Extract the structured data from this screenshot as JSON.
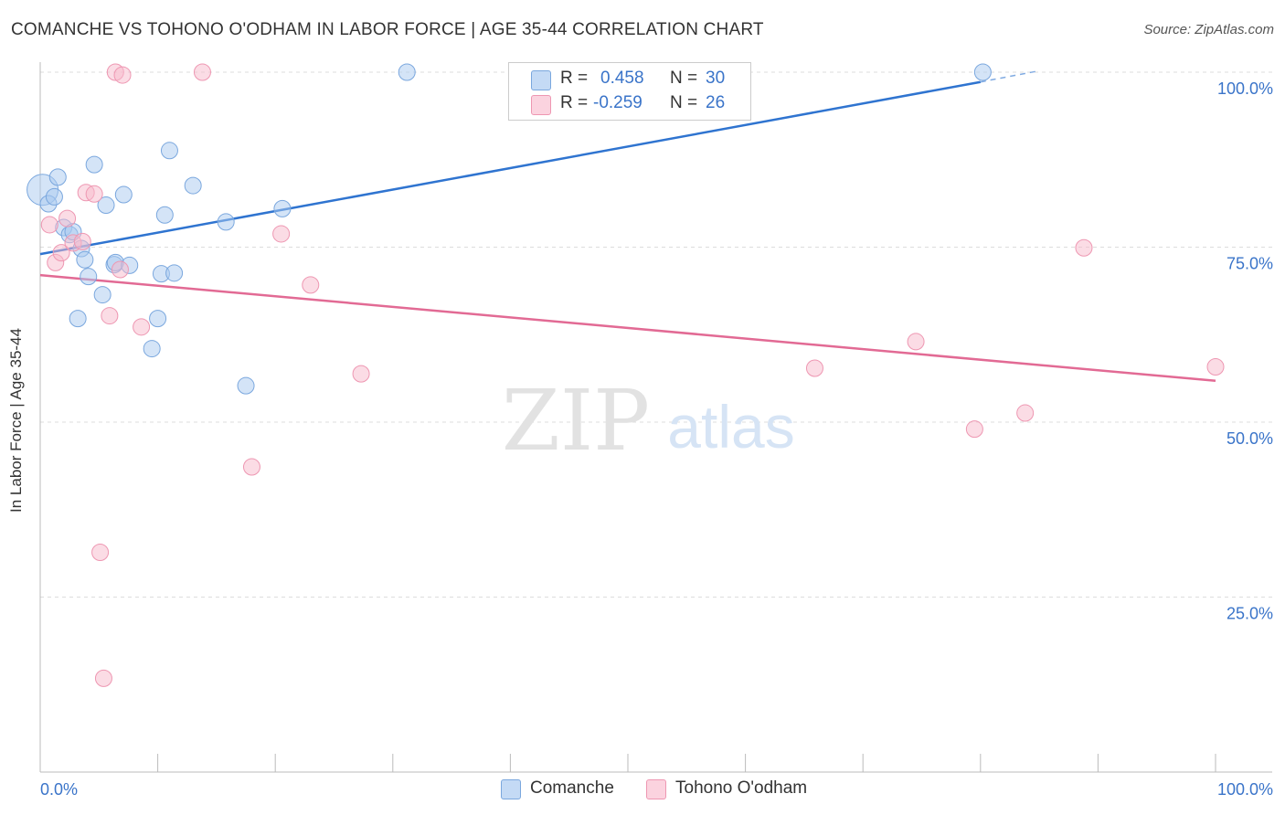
{
  "header": {
    "title": "COMANCHE VS TOHONO O'ODHAM IN LABOR FORCE | AGE 35-44 CORRELATION CHART",
    "source": "Source: ZipAtlas.com"
  },
  "watermark": {
    "zip": "ZIP",
    "atlas": "atlas"
  },
  "legend": {
    "rows": [
      {
        "r_label": "R =",
        "r_value": "0.458",
        "n_label": "N =",
        "n_value": "30",
        "color": "#a9c9f0"
      },
      {
        "r_label": "R =",
        "r_value": "-0.259",
        "n_label": "N =",
        "n_value": "26",
        "color": "#f7b9cc"
      }
    ],
    "bottom": [
      {
        "label": "Comanche",
        "color": "#a9c9f0"
      },
      {
        "label": "Tohono O'odham",
        "color": "#f7b9cc"
      }
    ]
  },
  "chart_data": {
    "type": "scatter",
    "title": "COMANCHE VS TOHONO O'ODHAM IN LABOR FORCE | AGE 35-44 CORRELATION CHART",
    "xlabel": "",
    "ylabel": "In Labor Force | Age 35-44",
    "xlim": [
      0,
      100
    ],
    "ylim": [
      0,
      100
    ],
    "x_tick_labels": {
      "left": "0.0%",
      "right": "100.0%"
    },
    "y_ticks": [
      {
        "value": 100,
        "label": "100.0%"
      },
      {
        "value": 75,
        "label": "75.0%"
      },
      {
        "value": 50,
        "label": "50.0%"
      },
      {
        "value": 25,
        "label": "25.0%"
      }
    ],
    "grid": true,
    "series": [
      {
        "name": "Comanche",
        "color": "#a9c9f0",
        "stroke": "#7aa7de",
        "line_color": "#2f74d0",
        "trend": {
          "x0": 0,
          "y0": 74.0,
          "x1": 80,
          "y1": 98.6,
          "dashed_to_x": 85,
          "dashed_to_y": 100.2
        },
        "points": [
          [
            0.2,
            83.2
          ],
          [
            0.7,
            81.2
          ],
          [
            1.2,
            82.2
          ],
          [
            1.5,
            85.0
          ],
          [
            2.0,
            77.8
          ],
          [
            2.5,
            76.8
          ],
          [
            2.8,
            77.2
          ],
          [
            3.5,
            74.8
          ],
          [
            3.8,
            73.2
          ],
          [
            4.1,
            70.8
          ],
          [
            4.6,
            86.8
          ],
          [
            5.3,
            68.2
          ],
          [
            5.6,
            81.0
          ],
          [
            6.3,
            72.5
          ],
          [
            6.4,
            72.8
          ],
          [
            7.1,
            82.5
          ],
          [
            7.6,
            72.4
          ],
          [
            9.5,
            60.5
          ],
          [
            10.0,
            64.8
          ],
          [
            10.3,
            71.2
          ],
          [
            10.6,
            79.6
          ],
          [
            11.0,
            88.8
          ],
          [
            11.4,
            71.3
          ],
          [
            13.0,
            83.8
          ],
          [
            15.8,
            78.6
          ],
          [
            17.5,
            55.2
          ],
          [
            20.6,
            80.5
          ],
          [
            31.2,
            100.0
          ],
          [
            80.2,
            100.0
          ],
          [
            3.2,
            64.8
          ]
        ],
        "sizes": [
          34,
          18,
          18,
          18,
          18,
          18,
          18,
          18,
          18,
          18,
          18,
          18,
          18,
          18,
          18,
          18,
          18,
          18,
          18,
          18,
          18,
          18,
          18,
          18,
          18,
          18,
          18,
          18,
          18,
          18
        ]
      },
      {
        "name": "Tohono O'odham",
        "color": "#f7b9cc",
        "stroke": "#ee97b2",
        "line_color": "#e26a94",
        "trend": {
          "x0": 0,
          "y0": 71.0,
          "x1": 100,
          "y1": 55.9
        },
        "points": [
          [
            0.8,
            78.2
          ],
          [
            1.3,
            72.8
          ],
          [
            1.8,
            74.2
          ],
          [
            2.3,
            79.1
          ],
          [
            2.8,
            75.6
          ],
          [
            3.6,
            75.8
          ],
          [
            3.9,
            82.8
          ],
          [
            4.6,
            82.6
          ],
          [
            5.1,
            31.4
          ],
          [
            5.4,
            13.4
          ],
          [
            5.9,
            65.2
          ],
          [
            6.4,
            100.0
          ],
          [
            6.8,
            71.8
          ],
          [
            8.6,
            63.6
          ],
          [
            13.8,
            100.0
          ],
          [
            18.0,
            43.6
          ],
          [
            20.5,
            76.9
          ],
          [
            23.0,
            69.6
          ],
          [
            27.3,
            56.9
          ],
          [
            65.9,
            57.7
          ],
          [
            74.5,
            61.5
          ],
          [
            79.5,
            49.0
          ],
          [
            83.8,
            51.3
          ],
          [
            88.8,
            74.9
          ],
          [
            100.0,
            57.9
          ],
          [
            7.0,
            99.6
          ]
        ]
      }
    ]
  }
}
